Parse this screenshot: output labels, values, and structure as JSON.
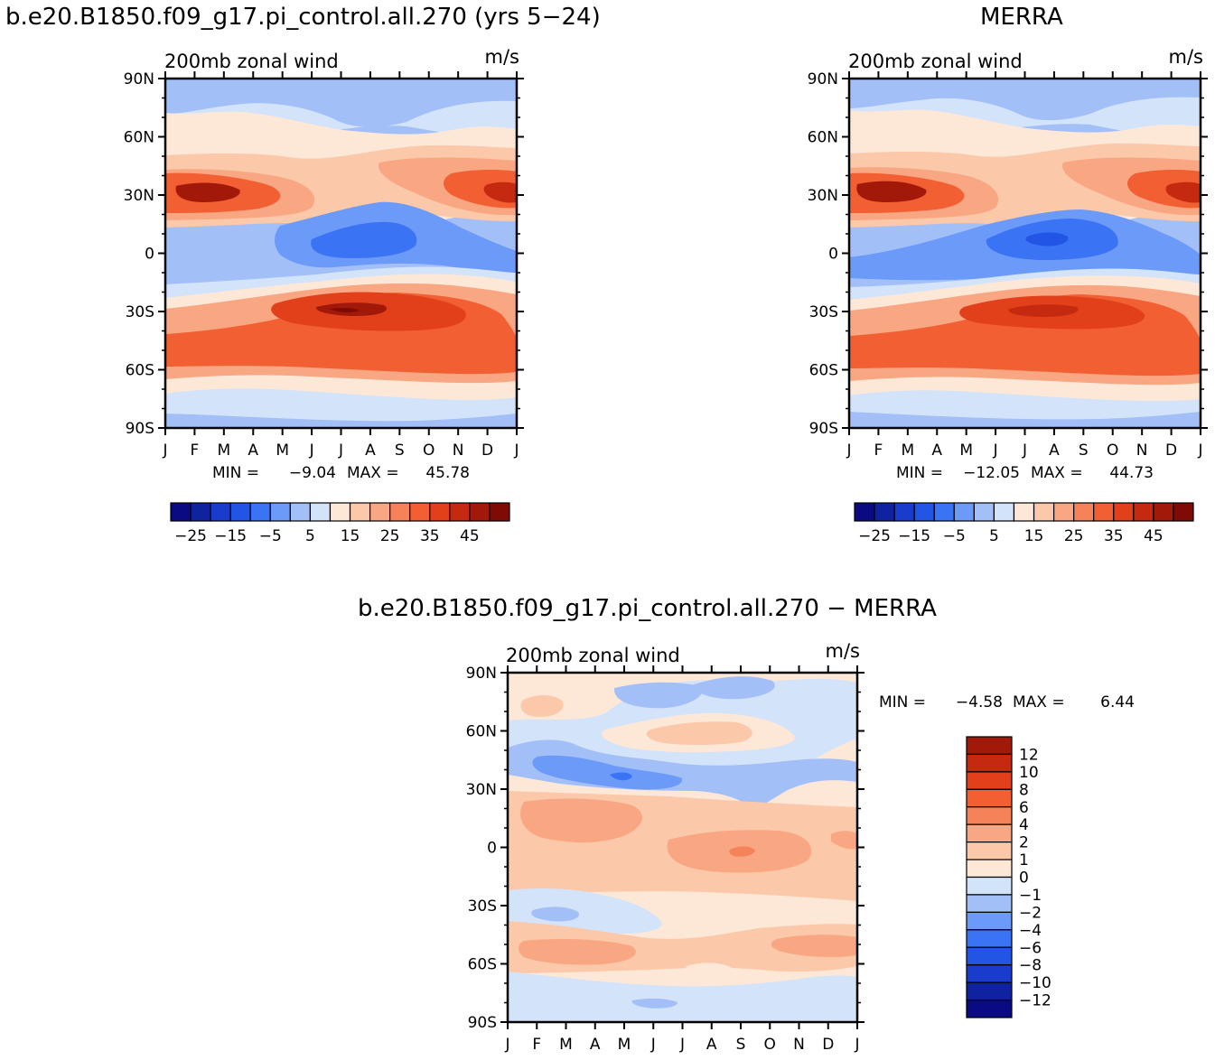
{
  "titles": {
    "left": "b.e20.B1850.f09_g17.pi_control.all.270 (yrs 5−24)",
    "right": "MERRA",
    "diff": "b.e20.B1850.f09_g17.pi_control.all.270 − MERRA"
  },
  "chart_data": [
    {
      "id": "model",
      "type": "heatmap",
      "title": "200mb zonal wind",
      "units": "m/s",
      "x_ticks": [
        "J",
        "F",
        "M",
        "A",
        "M",
        "J",
        "J",
        "A",
        "S",
        "O",
        "N",
        "D",
        "J"
      ],
      "y_ticks": [
        "90N",
        "60N",
        "30N",
        "0",
        "30S",
        "60S",
        "90S"
      ],
      "stats": {
        "min_label": "MIN =",
        "min": "−9.04",
        "max_label": "MAX =",
        "max": "45.78"
      },
      "colorbar": {
        "levels": [
          -30,
          -25,
          -20,
          -15,
          -10,
          -5,
          0,
          5,
          10,
          15,
          20,
          25,
          30,
          35,
          40,
          45
        ],
        "colors": [
          "#0a0a82",
          "#0f23a0",
          "#1a3ccc",
          "#2255e6",
          "#3a74f5",
          "#6c9af8",
          "#a3bff7",
          "#d3e3fa",
          "#fde8d8",
          "#fbc8aa",
          "#f9a682",
          "#f68259",
          "#f25f33",
          "#e2401a",
          "#c52a10",
          "#a21809",
          "#800a05"
        ],
        "tick_labels": [
          "−25",
          "−15",
          "−5",
          "5",
          "15",
          "25",
          "35",
          "45"
        ]
      },
      "contour_features": [
        {
          "name": "arctic-easterly",
          "lat": 78,
          "month_start": 3.5,
          "month_end": 7.5,
          "value": -3
        },
        {
          "name": "nh-jet-west",
          "lat": 28,
          "month_start": 0,
          "month_end": 3.5,
          "peak_month": 1.2,
          "value": 45
        },
        {
          "name": "nh-jet-east",
          "lat": 30,
          "month_start": 9.5,
          "month_end": 12,
          "peak_month": 11.8,
          "value": 40
        },
        {
          "name": "tropical-easterly",
          "lat": 5,
          "month_start": 4,
          "month_end": 9,
          "peak_month": 7,
          "value": -9
        },
        {
          "name": "sh-jet",
          "lat": -30,
          "month_start": 3.5,
          "month_end": 9.5,
          "peak_month": 6.3,
          "value": 45.78
        },
        {
          "name": "sh-midlat-band",
          "lat": -47,
          "month_start": 0,
          "month_end": 12,
          "value": 35
        }
      ]
    },
    {
      "id": "merra",
      "type": "heatmap",
      "title": "200mb zonal wind",
      "units": "m/s",
      "x_ticks": [
        "J",
        "F",
        "M",
        "A",
        "M",
        "J",
        "J",
        "A",
        "S",
        "O",
        "N",
        "D",
        "J"
      ],
      "y_ticks": [
        "90N",
        "60N",
        "30N",
        "0",
        "30S",
        "60S",
        "90S"
      ],
      "stats": {
        "min_label": "MIN =",
        "min": "−12.05",
        "max_label": "MAX =",
        "max": "44.73"
      },
      "colorbar": {
        "levels": [
          -30,
          -25,
          -20,
          -15,
          -10,
          -5,
          0,
          5,
          10,
          15,
          20,
          25,
          30,
          35,
          40,
          45
        ],
        "colors": [
          "#0a0a82",
          "#0f23a0",
          "#1a3ccc",
          "#2255e6",
          "#3a74f5",
          "#6c9af8",
          "#a3bff7",
          "#d3e3fa",
          "#fde8d8",
          "#fbc8aa",
          "#f9a682",
          "#f68259",
          "#f25f33",
          "#e2401a",
          "#c52a10",
          "#a21809",
          "#800a05"
        ],
        "tick_labels": [
          "−25",
          "−15",
          "−5",
          "5",
          "15",
          "25",
          "35",
          "45"
        ]
      },
      "contour_features": [
        {
          "name": "arctic-easterly",
          "lat": 78,
          "month_start": 3.5,
          "month_end": 7.5,
          "value": -2
        },
        {
          "name": "nh-jet-west",
          "lat": 28,
          "month_start": 0,
          "month_end": 3.5,
          "peak_month": 1.2,
          "value": 44
        },
        {
          "name": "nh-jet-east",
          "lat": 30,
          "month_start": 9.5,
          "month_end": 12,
          "peak_month": 11.8,
          "value": 40
        },
        {
          "name": "tropical-easterly",
          "lat": 6,
          "month_start": 4,
          "month_end": 9.5,
          "peak_month": 7,
          "value": -12
        },
        {
          "name": "sh-jet",
          "lat": -30,
          "month_start": 3.5,
          "month_end": 9.5,
          "peak_month": 6.5,
          "value": 40
        },
        {
          "name": "sh-midlat-band",
          "lat": -47,
          "month_start": 0,
          "month_end": 12,
          "value": 35
        }
      ]
    },
    {
      "id": "difference",
      "type": "heatmap",
      "title": "200mb zonal wind",
      "units": "m/s",
      "x_ticks": [
        "J",
        "F",
        "M",
        "A",
        "M",
        "J",
        "J",
        "A",
        "S",
        "O",
        "N",
        "D",
        "J"
      ],
      "y_ticks": [
        "90N",
        "60N",
        "30N",
        "0",
        "30S",
        "60S",
        "90S"
      ],
      "stats": {
        "min_label": "MIN =",
        "min": "−4.58",
        "max_label": "MAX =",
        "max": "6.44"
      },
      "colorbar": {
        "levels": [
          -12,
          -10,
          -8,
          -6,
          -4,
          -2,
          -1,
          0,
          1,
          2,
          4,
          6,
          8,
          10,
          12
        ],
        "colors": [
          "#0a0a82",
          "#0f23a0",
          "#1a3ccc",
          "#2255e6",
          "#3a74f5",
          "#6c9af8",
          "#a3bff7",
          "#d3e3fa",
          "#fde8d8",
          "#fbc8aa",
          "#f9a682",
          "#f68259",
          "#f25f33",
          "#e2401a",
          "#c52a10",
          "#a21809"
        ],
        "tick_labels": [
          "12",
          "10",
          "8",
          "6",
          "4",
          "2",
          "1",
          "0",
          "−1",
          "−2",
          "−4",
          "−6",
          "−8",
          "−10",
          "−12"
        ]
      },
      "contour_features": [
        {
          "name": "nh-polar-positive",
          "lat": 72,
          "month_start": 0.5,
          "month_end": 2,
          "value": 3
        },
        {
          "name": "nh-midlat-positive",
          "lat": 55,
          "month_start": 5,
          "month_end": 8.5,
          "value": 2
        },
        {
          "name": "nh-midlat-negative",
          "lat": 33,
          "month_start": 1.5,
          "month_end": 6,
          "peak_month": 4,
          "value": -4.58
        },
        {
          "name": "tropical-positive",
          "lat": 0,
          "month_start": 0,
          "month_end": 12,
          "peak_month": 8.5,
          "value": 6.44
        },
        {
          "name": "sh-subtropic-negative",
          "lat": -30,
          "month_start": 0.5,
          "month_end": 5.5,
          "value": -1
        },
        {
          "name": "sh-midlat-positive",
          "lat": -52,
          "month_start": 0.5,
          "month_end": 5,
          "value": 3
        }
      ]
    }
  ]
}
